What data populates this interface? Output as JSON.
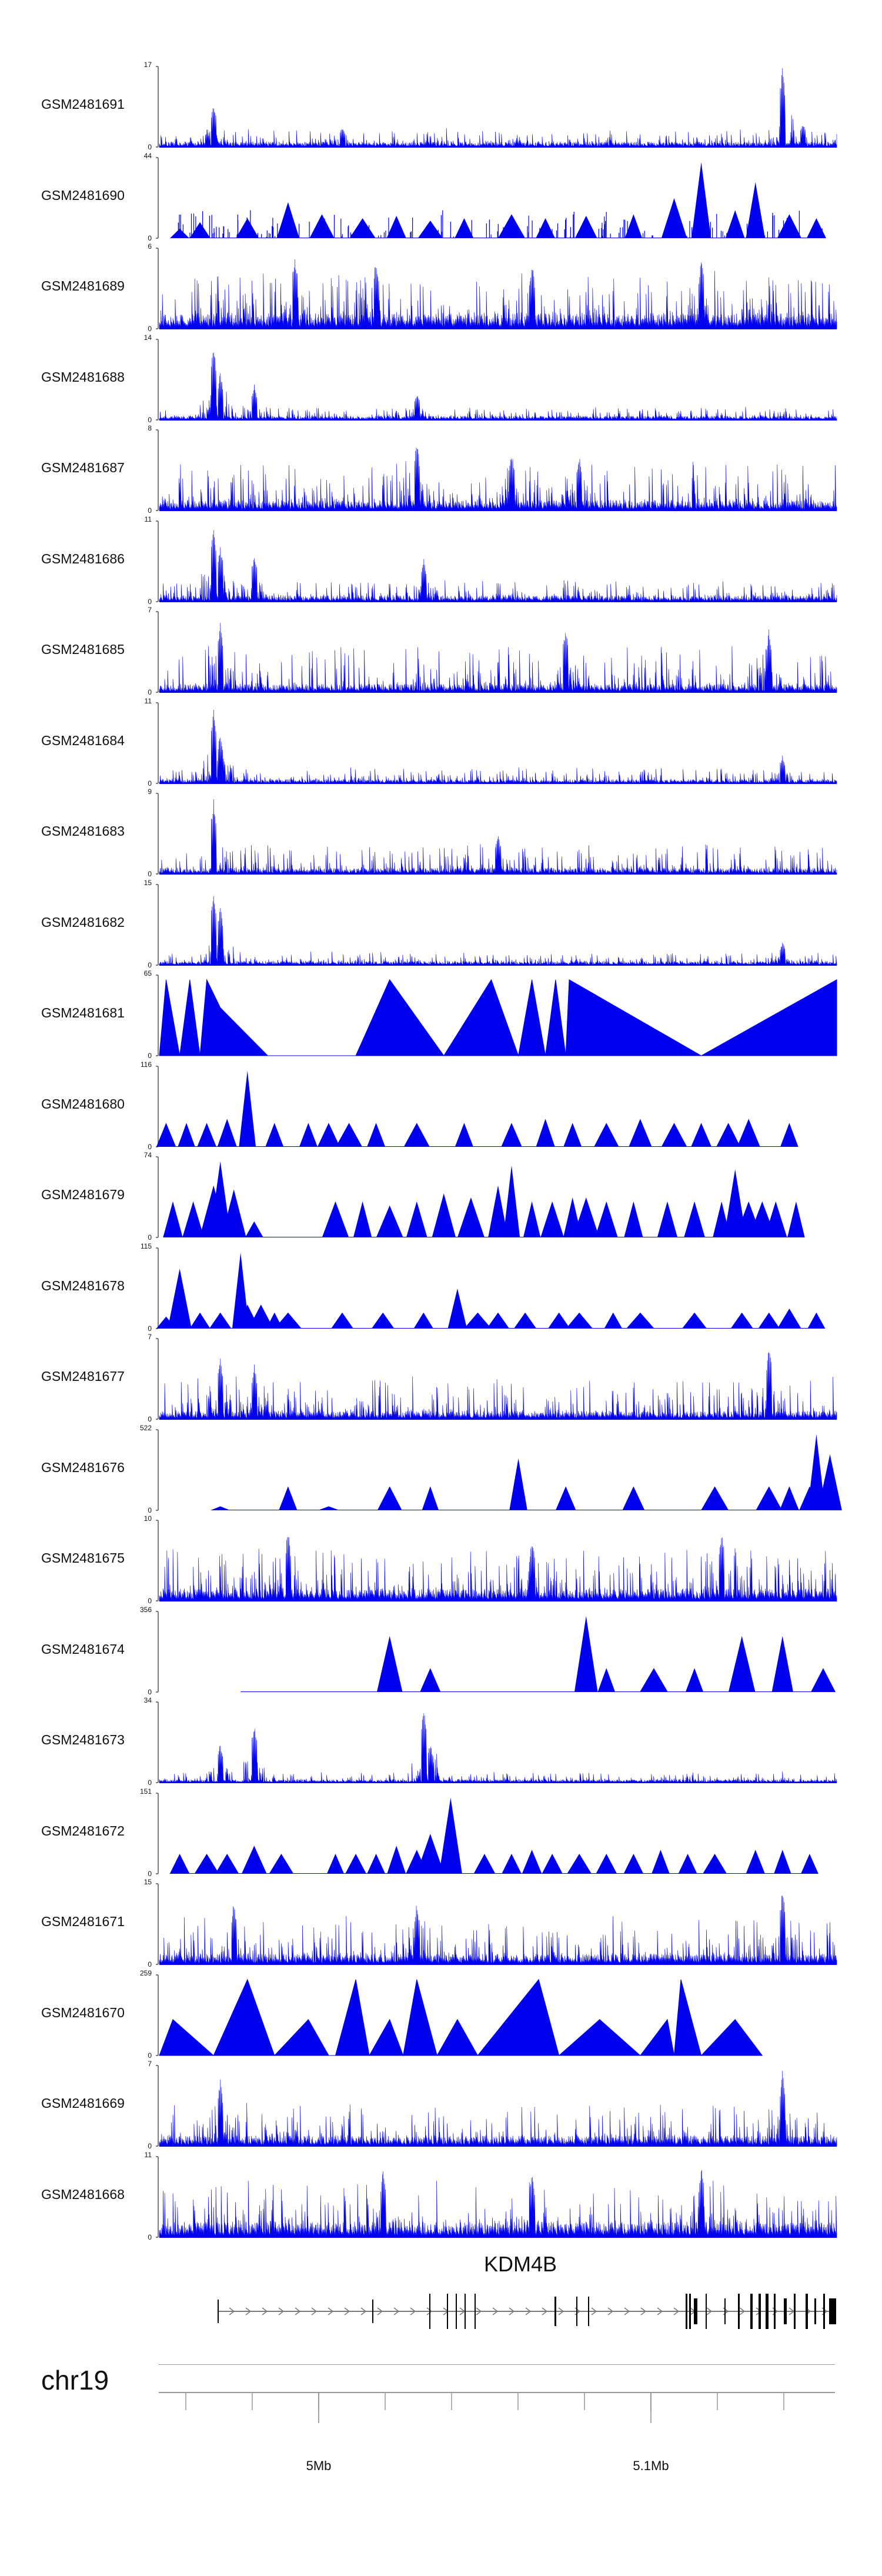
{
  "chart_data": {
    "type": "area",
    "title": "",
    "chromosome": "chr19",
    "gene": {
      "name": "KDM4B",
      "strand": "+"
    },
    "genomic_axis": {
      "tick_labels": [
        "5Mb",
        "5.1Mb"
      ],
      "tick_values_mb": [
        5.0,
        5.1
      ]
    },
    "colors": {
      "signal": "#0000ee",
      "axis": "#888888",
      "text": "#111111",
      "gene": "#000000"
    },
    "series": [
      {
        "name": "GSM2481691",
        "ymin": 0,
        "ymax": 17,
        "style": "dense",
        "seed": 11,
        "baseline": 0.05,
        "spread": 0.18,
        "peaks": [
          [
            0.08,
            0.55
          ],
          [
            0.27,
            0.25
          ],
          [
            0.92,
            1.0
          ],
          [
            0.95,
            0.3
          ]
        ]
      },
      {
        "name": "GSM2481690",
        "ymin": 0,
        "ymax": 44,
        "style": "triangles",
        "seed": 23,
        "tri": [
          [
            0.03,
            0.12
          ],
          [
            0.06,
            0.2
          ],
          [
            0.13,
            0.25
          ],
          [
            0.19,
            0.45
          ],
          [
            0.24,
            0.3
          ],
          [
            0.3,
            0.25
          ],
          [
            0.35,
            0.28
          ],
          [
            0.4,
            0.22
          ],
          [
            0.45,
            0.25
          ],
          [
            0.52,
            0.3
          ],
          [
            0.57,
            0.25
          ],
          [
            0.63,
            0.28
          ],
          [
            0.7,
            0.3
          ],
          [
            0.76,
            0.5
          ],
          [
            0.8,
            0.95
          ],
          [
            0.85,
            0.35
          ],
          [
            0.88,
            0.7
          ],
          [
            0.93,
            0.3
          ],
          [
            0.97,
            0.25
          ]
        ],
        "dense_overlay": 0.35
      },
      {
        "name": "GSM2481689",
        "ymin": 0,
        "ymax": 6,
        "style": "dense",
        "seed": 37,
        "baseline": 0.15,
        "spread": 0.55,
        "peaks": [
          [
            0.2,
            0.95
          ],
          [
            0.32,
            0.9
          ],
          [
            0.55,
            0.85
          ],
          [
            0.8,
            0.9
          ]
        ]
      },
      {
        "name": "GSM2481688",
        "ymin": 0,
        "ymax": 14,
        "style": "dense",
        "seed": 41,
        "baseline": 0.04,
        "spread": 0.12,
        "peaks": [
          [
            0.08,
            0.95
          ],
          [
            0.09,
            0.6
          ],
          [
            0.14,
            0.45
          ],
          [
            0.38,
            0.35
          ]
        ]
      },
      {
        "name": "GSM2481687",
        "ymin": 0,
        "ymax": 8,
        "style": "dense",
        "seed": 53,
        "baseline": 0.1,
        "spread": 0.5,
        "peaks": [
          [
            0.38,
            0.9
          ],
          [
            0.52,
            0.75
          ],
          [
            0.62,
            0.7
          ]
        ]
      },
      {
        "name": "GSM2481686",
        "ymin": 0,
        "ymax": 11,
        "style": "dense",
        "seed": 61,
        "baseline": 0.06,
        "spread": 0.2,
        "peaks": [
          [
            0.08,
            0.95
          ],
          [
            0.09,
            0.7
          ],
          [
            0.14,
            0.6
          ],
          [
            0.39,
            0.55
          ]
        ]
      },
      {
        "name": "GSM2481685",
        "ymin": 0,
        "ymax": 7,
        "style": "dense",
        "seed": 67,
        "baseline": 0.08,
        "spread": 0.5,
        "peaks": [
          [
            0.09,
            0.9
          ],
          [
            0.6,
            0.85
          ],
          [
            0.9,
            0.8
          ]
        ]
      },
      {
        "name": "GSM2481684",
        "ymin": 0,
        "ymax": 11,
        "style": "dense",
        "seed": 71,
        "baseline": 0.04,
        "spread": 0.15,
        "peaks": [
          [
            0.08,
            0.95
          ],
          [
            0.09,
            0.65
          ],
          [
            0.92,
            0.35
          ]
        ]
      },
      {
        "name": "GSM2481683",
        "ymin": 0,
        "ymax": 9,
        "style": "dense",
        "seed": 79,
        "baseline": 0.06,
        "spread": 0.3,
        "peaks": [
          [
            0.08,
            0.95
          ],
          [
            0.5,
            0.5
          ]
        ]
      },
      {
        "name": "GSM2481682",
        "ymin": 0,
        "ymax": 15,
        "style": "dense",
        "seed": 83,
        "baseline": 0.04,
        "spread": 0.12,
        "peaks": [
          [
            0.08,
            0.95
          ],
          [
            0.09,
            0.75
          ],
          [
            0.92,
            0.3
          ]
        ]
      },
      {
        "name": "GSM2481681",
        "ymin": 0,
        "ymax": 65,
        "style": "triangles",
        "seed": 89,
        "tri_full": [
          [
            0.0,
            0.0
          ],
          [
            0.01,
            0.95
          ],
          [
            0.03,
            0.0
          ],
          [
            0.045,
            0.95
          ],
          [
            0.06,
            0.0
          ],
          [
            0.07,
            0.95
          ],
          [
            0.09,
            0.6
          ],
          [
            0.16,
            0.0
          ],
          [
            0.29,
            0.0
          ],
          [
            0.34,
            0.95
          ],
          [
            0.42,
            0.0
          ],
          [
            0.49,
            0.95
          ],
          [
            0.53,
            0.0
          ],
          [
            0.55,
            0.95
          ],
          [
            0.57,
            0.0
          ],
          [
            0.585,
            0.95
          ],
          [
            0.6,
            0.0
          ],
          [
            0.605,
            0.95
          ],
          [
            0.8,
            0.0
          ],
          [
            1.0,
            0.95
          ]
        ]
      },
      {
        "name": "GSM2481680",
        "ymin": 0,
        "ymax": 116,
        "style": "triangles",
        "seed": 97,
        "tri": [
          [
            0.01,
            0.3
          ],
          [
            0.04,
            0.3
          ],
          [
            0.07,
            0.3
          ],
          [
            0.1,
            0.35
          ],
          [
            0.13,
            0.95
          ],
          [
            0.17,
            0.3
          ],
          [
            0.22,
            0.3
          ],
          [
            0.25,
            0.3
          ],
          [
            0.28,
            0.3
          ],
          [
            0.32,
            0.3
          ],
          [
            0.38,
            0.3
          ],
          [
            0.45,
            0.3
          ],
          [
            0.52,
            0.3
          ],
          [
            0.57,
            0.35
          ],
          [
            0.61,
            0.3
          ],
          [
            0.66,
            0.3
          ],
          [
            0.71,
            0.35
          ],
          [
            0.76,
            0.3
          ],
          [
            0.8,
            0.3
          ],
          [
            0.84,
            0.3
          ],
          [
            0.87,
            0.35
          ],
          [
            0.93,
            0.3
          ]
        ]
      },
      {
        "name": "GSM2481679",
        "ymin": 0,
        "ymax": 74,
        "style": "triangles",
        "seed": 101,
        "tri": [
          [
            0.02,
            0.45
          ],
          [
            0.05,
            0.45
          ],
          [
            0.08,
            0.65
          ],
          [
            0.09,
            0.95
          ],
          [
            0.11,
            0.6
          ],
          [
            0.14,
            0.2
          ],
          [
            0.26,
            0.45
          ],
          [
            0.3,
            0.45
          ],
          [
            0.34,
            0.4
          ],
          [
            0.38,
            0.45
          ],
          [
            0.42,
            0.55
          ],
          [
            0.46,
            0.5
          ],
          [
            0.5,
            0.65
          ],
          [
            0.52,
            0.9
          ],
          [
            0.55,
            0.45
          ],
          [
            0.58,
            0.45
          ],
          [
            0.61,
            0.5
          ],
          [
            0.63,
            0.5
          ],
          [
            0.66,
            0.45
          ],
          [
            0.7,
            0.45
          ],
          [
            0.75,
            0.45
          ],
          [
            0.79,
            0.45
          ],
          [
            0.83,
            0.45
          ],
          [
            0.85,
            0.85
          ],
          [
            0.87,
            0.45
          ],
          [
            0.89,
            0.45
          ],
          [
            0.91,
            0.45
          ],
          [
            0.94,
            0.45
          ]
        ]
      },
      {
        "name": "GSM2481678",
        "ymin": 0,
        "ymax": 115,
        "style": "triangles",
        "seed": 103,
        "tri": [
          [
            0.01,
            0.15
          ],
          [
            0.03,
            0.75
          ],
          [
            0.06,
            0.2
          ],
          [
            0.09,
            0.2
          ],
          [
            0.12,
            0.95
          ],
          [
            0.13,
            0.3
          ],
          [
            0.15,
            0.3
          ],
          [
            0.17,
            0.2
          ],
          [
            0.19,
            0.2
          ],
          [
            0.27,
            0.2
          ],
          [
            0.33,
            0.2
          ],
          [
            0.39,
            0.2
          ],
          [
            0.44,
            0.5
          ],
          [
            0.47,
            0.2
          ],
          [
            0.5,
            0.2
          ],
          [
            0.54,
            0.2
          ],
          [
            0.59,
            0.2
          ],
          [
            0.62,
            0.2
          ],
          [
            0.67,
            0.2
          ],
          [
            0.71,
            0.2
          ],
          [
            0.79,
            0.2
          ],
          [
            0.86,
            0.2
          ],
          [
            0.9,
            0.2
          ],
          [
            0.93,
            0.25
          ],
          [
            0.97,
            0.2
          ]
        ]
      },
      {
        "name": "GSM2481677",
        "ymin": 0,
        "ymax": 7,
        "style": "dense",
        "seed": 107,
        "baseline": 0.08,
        "spread": 0.45,
        "peaks": [
          [
            0.09,
            0.8
          ],
          [
            0.14,
            0.7
          ],
          [
            0.9,
            0.95
          ]
        ]
      },
      {
        "name": "GSM2481676",
        "ymin": 0,
        "ymax": 522,
        "style": "triangles",
        "seed": 109,
        "tri": [
          [
            0.09,
            0.05
          ],
          [
            0.19,
            0.3
          ],
          [
            0.25,
            0.05
          ],
          [
            0.34,
            0.3
          ],
          [
            0.4,
            0.3
          ],
          [
            0.53,
            0.65
          ],
          [
            0.6,
            0.3
          ],
          [
            0.7,
            0.3
          ],
          [
            0.82,
            0.3
          ],
          [
            0.9,
            0.3
          ],
          [
            0.93,
            0.3
          ],
          [
            0.96,
            0.3
          ],
          [
            0.97,
            0.95
          ],
          [
            0.99,
            0.7
          ]
        ]
      },
      {
        "name": "GSM2481675",
        "ymin": 0,
        "ymax": 10,
        "style": "dense",
        "seed": 113,
        "baseline": 0.12,
        "spread": 0.55,
        "peaks": [
          [
            0.19,
            0.9
          ],
          [
            0.55,
            0.8
          ],
          [
            0.83,
            0.9
          ]
        ]
      },
      {
        "name": "GSM2481674",
        "ymin": 0,
        "ymax": 356,
        "style": "triangles",
        "seed": 127,
        "tri": [
          [
            0.12,
            0.0
          ],
          [
            0.29,
            0.0
          ],
          [
            0.34,
            0.7
          ],
          [
            0.4,
            0.3
          ],
          [
            0.52,
            0.0
          ],
          [
            0.63,
            0.95
          ],
          [
            0.66,
            0.3
          ],
          [
            0.73,
            0.3
          ],
          [
            0.79,
            0.3
          ],
          [
            0.86,
            0.7
          ],
          [
            0.92,
            0.7
          ],
          [
            0.98,
            0.3
          ]
        ]
      },
      {
        "name": "GSM2481673",
        "ymin": 0,
        "ymax": 34,
        "style": "dense",
        "seed": 131,
        "baseline": 0.03,
        "spread": 0.1,
        "peaks": [
          [
            0.09,
            0.5
          ],
          [
            0.14,
            0.75
          ],
          [
            0.39,
            0.95
          ],
          [
            0.4,
            0.5
          ]
        ]
      },
      {
        "name": "GSM2481672",
        "ymin": 0,
        "ymax": 151,
        "style": "triangles",
        "seed": 137,
        "tri": [
          [
            0.03,
            0.25
          ],
          [
            0.07,
            0.25
          ],
          [
            0.1,
            0.25
          ],
          [
            0.14,
            0.35
          ],
          [
            0.18,
            0.25
          ],
          [
            0.26,
            0.25
          ],
          [
            0.29,
            0.25
          ],
          [
            0.32,
            0.25
          ],
          [
            0.35,
            0.35
          ],
          [
            0.38,
            0.3
          ],
          [
            0.4,
            0.5
          ],
          [
            0.43,
            0.95
          ],
          [
            0.48,
            0.25
          ],
          [
            0.52,
            0.25
          ],
          [
            0.55,
            0.3
          ],
          [
            0.58,
            0.25
          ],
          [
            0.62,
            0.25
          ],
          [
            0.66,
            0.25
          ],
          [
            0.7,
            0.25
          ],
          [
            0.74,
            0.3
          ],
          [
            0.78,
            0.25
          ],
          [
            0.82,
            0.25
          ],
          [
            0.88,
            0.3
          ],
          [
            0.92,
            0.3
          ],
          [
            0.96,
            0.25
          ]
        ]
      },
      {
        "name": "GSM2481671",
        "ymin": 0,
        "ymax": 15,
        "style": "dense",
        "seed": 139,
        "baseline": 0.1,
        "spread": 0.5,
        "peaks": [
          [
            0.11,
            0.8
          ],
          [
            0.38,
            0.8
          ],
          [
            0.92,
            0.95
          ]
        ]
      },
      {
        "name": "GSM2481670",
        "ymin": 0,
        "ymax": 259,
        "style": "triangles",
        "seed": 149,
        "tri_full": [
          [
            0.0,
            0.0
          ],
          [
            0.02,
            0.45
          ],
          [
            0.08,
            0.0
          ],
          [
            0.13,
            0.95
          ],
          [
            0.17,
            0.0
          ],
          [
            0.22,
            0.45
          ],
          [
            0.25,
            0.0
          ],
          [
            0.26,
            0.0
          ],
          [
            0.29,
            0.95
          ],
          [
            0.31,
            0.0
          ],
          [
            0.34,
            0.45
          ],
          [
            0.36,
            0.0
          ],
          [
            0.38,
            0.95
          ],
          [
            0.41,
            0.0
          ],
          [
            0.44,
            0.45
          ],
          [
            0.47,
            0.0
          ],
          [
            0.56,
            0.95
          ],
          [
            0.59,
            0.0
          ],
          [
            0.65,
            0.45
          ],
          [
            0.71,
            0.0
          ],
          [
            0.75,
            0.45
          ],
          [
            0.76,
            0.0
          ],
          [
            0.77,
            0.95
          ],
          [
            0.8,
            0.0
          ],
          [
            0.85,
            0.45
          ],
          [
            0.89,
            0.0
          ]
        ]
      },
      {
        "name": "GSM2481669",
        "ymin": 0,
        "ymax": 7,
        "style": "dense",
        "seed": 151,
        "baseline": 0.1,
        "spread": 0.45,
        "peaks": [
          [
            0.09,
            0.85
          ],
          [
            0.92,
            0.95
          ]
        ]
      },
      {
        "name": "GSM2481668",
        "ymin": 0,
        "ymax": 11,
        "style": "dense",
        "seed": 157,
        "baseline": 0.15,
        "spread": 0.55,
        "peaks": [
          [
            0.33,
            0.85
          ],
          [
            0.55,
            0.8
          ],
          [
            0.8,
            0.9
          ]
        ]
      }
    ]
  }
}
